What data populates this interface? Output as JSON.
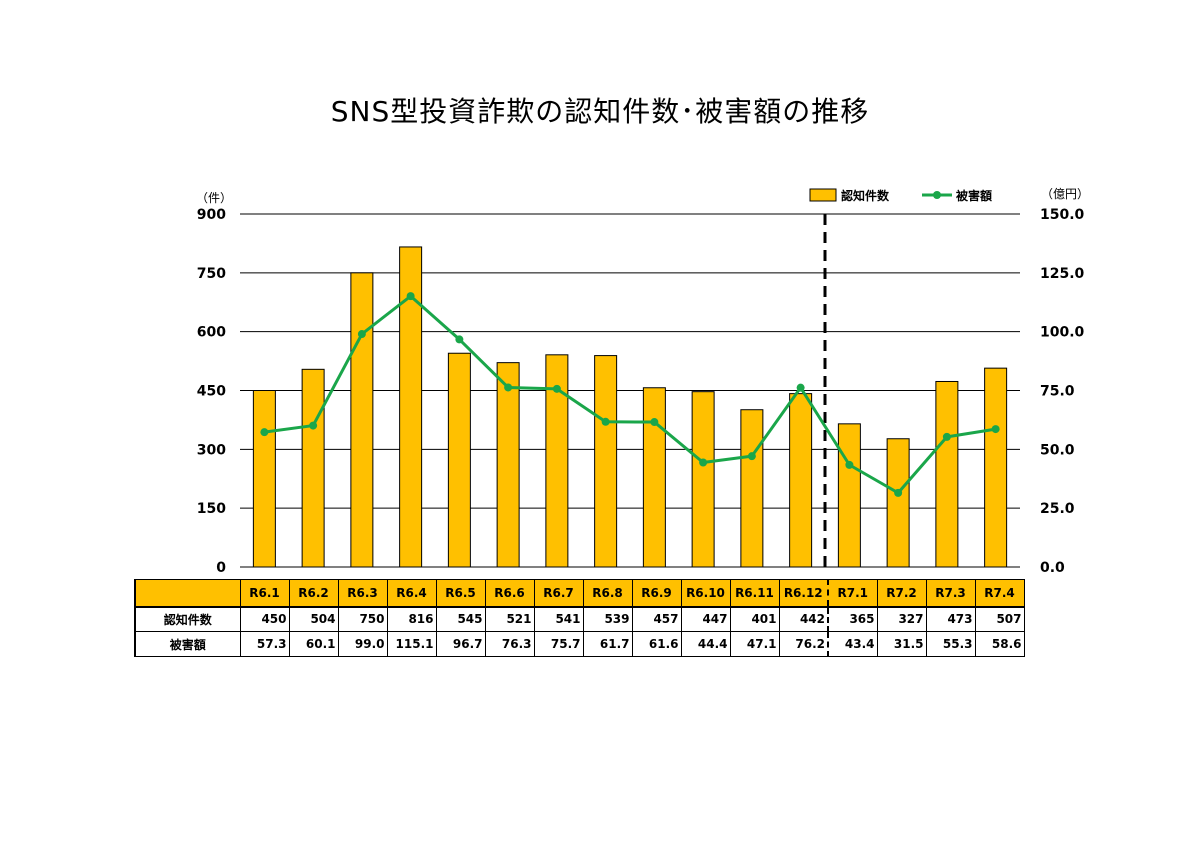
{
  "chart_data": {
    "type": "bar+line",
    "title": "SNS型投資詐欺の認知件数･被害額の推移",
    "categories": [
      "R6.1",
      "R6.2",
      "R6.3",
      "R6.4",
      "R6.5",
      "R6.6",
      "R6.7",
      "R6.8",
      "R6.9",
      "R6.10",
      "R6.11",
      "R6.12",
      "R7.1",
      "R7.2",
      "R7.3",
      "R7.4"
    ],
    "series": [
      {
        "name": "認知件数",
        "type": "bar",
        "axis": "left",
        "color": "#ffc000",
        "values": [
          450,
          504,
          750,
          816,
          545,
          521,
          541,
          539,
          457,
          447,
          401,
          442,
          365,
          327,
          473,
          507
        ],
        "labels": [
          "450",
          "504",
          "750",
          "816",
          "545",
          "521",
          "541",
          "539",
          "457",
          "447",
          "401",
          "442",
          "365",
          "327",
          "473",
          "507"
        ]
      },
      {
        "name": "被害額",
        "type": "line",
        "axis": "right",
        "color": "#1aa64a",
        "values": [
          57.3,
          60.1,
          99.0,
          115.1,
          96.7,
          76.3,
          75.7,
          61.7,
          61.6,
          44.4,
          47.1,
          76.2,
          43.4,
          31.5,
          55.3,
          58.6
        ],
        "labels": [
          "57.3",
          "60.1",
          "99.0",
          "115.1",
          "96.7",
          "76.3",
          "75.7",
          "61.7",
          "61.6",
          "44.4",
          "47.1",
          "76.2",
          "43.4",
          "31.5",
          "55.3",
          "58.6"
        ]
      }
    ],
    "y_left": {
      "unit": "（件）",
      "ylim": [
        0,
        900
      ],
      "ticks": [
        "0",
        "150",
        "300",
        "450",
        "600",
        "750",
        "900"
      ]
    },
    "y_right": {
      "unit": "（億円）",
      "ylim": [
        0,
        150
      ],
      "ticks": [
        "0.0",
        "25.0",
        "50.0",
        "75.0",
        "100.0",
        "125.0",
        "150.0"
      ]
    },
    "divider_after_category": "R6.12",
    "grid": true,
    "legend_placement": "top-right"
  }
}
